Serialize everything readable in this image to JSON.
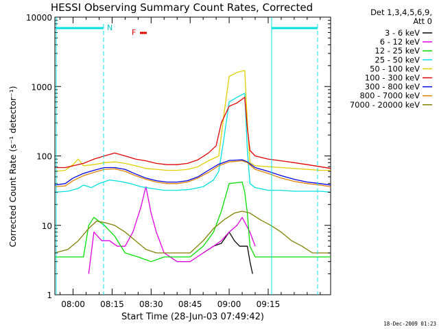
{
  "chart_data": {
    "type": "line",
    "title": "HESSI Observing Summary Count Rates, Corrected",
    "xlabel": "Start Time (28-Jun-03 07:49:42)",
    "ylabel": "Corrected Count Rate (s⁻¹ detector⁻¹)",
    "y_scale": "log",
    "ylim": [
      1,
      10000
    ],
    "xlim_minutes": [
      -7,
      99
    ],
    "x_ticks": [
      {
        "minute": 0,
        "label": "08:00"
      },
      {
        "minute": 15,
        "label": "08:15"
      },
      {
        "minute": 30,
        "label": "08:30"
      },
      {
        "minute": 45,
        "label": "08:45"
      },
      {
        "minute": 60,
        "label": "09:00"
      },
      {
        "minute": 75,
        "label": "09:15"
      }
    ],
    "y_ticks": [
      {
        "value": 1,
        "label": "1"
      },
      {
        "value": 10,
        "label": "10"
      },
      {
        "value": 100,
        "label": "100"
      },
      {
        "value": 1000,
        "label": "1000"
      },
      {
        "value": 10000,
        "label": "10000"
      }
    ],
    "legend_header": [
      "Det 1,3,4,5,6,9,",
      "Att 0"
    ],
    "legend_position": "right",
    "annotations": {
      "night": "N",
      "flare": "F"
    },
    "timestamp": "18-Dec-2009 01:23",
    "series": [
      {
        "name": "3 - 6 keV",
        "color": "#000000",
        "points": [
          [
            50,
            4
          ],
          [
            54,
            5
          ],
          [
            57,
            5.5
          ],
          [
            60,
            8
          ],
          [
            62,
            6
          ],
          [
            64,
            5
          ],
          [
            67,
            5
          ],
          [
            68,
            3
          ],
          [
            69,
            2
          ]
        ]
      },
      {
        "name": "6 - 12 keV",
        "color": "#e000e0",
        "points": [
          [
            6,
            2
          ],
          [
            8,
            8
          ],
          [
            11,
            6
          ],
          [
            14,
            6
          ],
          [
            17,
            5
          ],
          [
            20,
            5
          ],
          [
            23,
            8
          ],
          [
            26,
            18
          ],
          [
            28,
            36
          ],
          [
            30,
            15
          ],
          [
            32,
            8
          ],
          [
            35,
            4
          ],
          [
            40,
            3
          ],
          [
            45,
            3
          ],
          [
            50,
            4
          ],
          [
            54,
            5
          ],
          [
            57,
            6
          ],
          [
            60,
            8
          ],
          [
            63,
            10
          ],
          [
            65,
            13
          ],
          [
            68,
            8
          ],
          [
            70,
            5
          ]
        ]
      },
      {
        "name": "12 - 25 keV",
        "color": "#00e000",
        "points": [
          [
            -7,
            3.5
          ],
          [
            0,
            3.5
          ],
          [
            4,
            3.5
          ],
          [
            6,
            10
          ],
          [
            8,
            13
          ],
          [
            12,
            10
          ],
          [
            16,
            7
          ],
          [
            20,
            4
          ],
          [
            25,
            3.5
          ],
          [
            30,
            3
          ],
          [
            35,
            3.5
          ],
          [
            40,
            3.5
          ],
          [
            45,
            3.5
          ],
          [
            50,
            5
          ],
          [
            54,
            8
          ],
          [
            57,
            16
          ],
          [
            60,
            40
          ],
          [
            65,
            42
          ],
          [
            66,
            30
          ],
          [
            67,
            15
          ],
          [
            68,
            5
          ],
          [
            70,
            3.5
          ],
          [
            80,
            3.5
          ],
          [
            90,
            3.5
          ],
          [
            95,
            3.5
          ],
          [
            99,
            3.5
          ]
        ]
      },
      {
        "name": "25 - 50 keV",
        "color": "#00e0e0",
        "points": [
          [
            -7,
            30
          ],
          [
            -2,
            31
          ],
          [
            2,
            34
          ],
          [
            4,
            38
          ],
          [
            7,
            35
          ],
          [
            10,
            40
          ],
          [
            14,
            45
          ],
          [
            18,
            43
          ],
          [
            22,
            40
          ],
          [
            26,
            36
          ],
          [
            30,
            34
          ],
          [
            35,
            32
          ],
          [
            40,
            32
          ],
          [
            45,
            33
          ],
          [
            50,
            36
          ],
          [
            54,
            45
          ],
          [
            56,
            60
          ],
          [
            58,
            180
          ],
          [
            60,
            600
          ],
          [
            63,
            700
          ],
          [
            66,
            800
          ],
          [
            67,
            120
          ],
          [
            68,
            40
          ],
          [
            70,
            35
          ],
          [
            75,
            32
          ],
          [
            80,
            32
          ],
          [
            85,
            31
          ],
          [
            90,
            31
          ],
          [
            95,
            31
          ],
          [
            99,
            30
          ]
        ]
      },
      {
        "name": "50 - 100 keV",
        "color": "#e0d000",
        "points": [
          [
            -7,
            60
          ],
          [
            -3,
            62
          ],
          [
            0,
            75
          ],
          [
            2,
            90
          ],
          [
            4,
            72
          ],
          [
            8,
            75
          ],
          [
            12,
            80
          ],
          [
            16,
            82
          ],
          [
            20,
            78
          ],
          [
            24,
            72
          ],
          [
            28,
            66
          ],
          [
            32,
            64
          ],
          [
            36,
            62
          ],
          [
            40,
            62
          ],
          [
            44,
            64
          ],
          [
            48,
            70
          ],
          [
            52,
            85
          ],
          [
            56,
            100
          ],
          [
            58,
            400
          ],
          [
            60,
            1400
          ],
          [
            63,
            1600
          ],
          [
            66,
            1700
          ],
          [
            67,
            300
          ],
          [
            68,
            80
          ],
          [
            70,
            72
          ],
          [
            75,
            70
          ],
          [
            80,
            68
          ],
          [
            85,
            66
          ],
          [
            90,
            64
          ],
          [
            95,
            62
          ],
          [
            99,
            62
          ]
        ]
      },
      {
        "name": "100 - 300 keV",
        "color": "#e00000",
        "points": [
          [
            -7,
            68
          ],
          [
            -3,
            68
          ],
          [
            0,
            72
          ],
          [
            4,
            78
          ],
          [
            8,
            90
          ],
          [
            12,
            100
          ],
          [
            16,
            110
          ],
          [
            20,
            100
          ],
          [
            24,
            90
          ],
          [
            28,
            85
          ],
          [
            32,
            78
          ],
          [
            36,
            75
          ],
          [
            40,
            75
          ],
          [
            44,
            78
          ],
          [
            48,
            88
          ],
          [
            52,
            110
          ],
          [
            55,
            140
          ],
          [
            57,
            300
          ],
          [
            60,
            520
          ],
          [
            63,
            580
          ],
          [
            66,
            700
          ],
          [
            67,
            250
          ],
          [
            68,
            120
          ],
          [
            70,
            100
          ],
          [
            75,
            90
          ],
          [
            80,
            85
          ],
          [
            85,
            80
          ],
          [
            90,
            75
          ],
          [
            95,
            70
          ],
          [
            99,
            66
          ]
        ]
      },
      {
        "name": "300 - 800 keV",
        "color": "#0000e0",
        "points": [
          [
            -7,
            38
          ],
          [
            -3,
            40
          ],
          [
            0,
            48
          ],
          [
            4,
            56
          ],
          [
            8,
            62
          ],
          [
            12,
            68
          ],
          [
            16,
            68
          ],
          [
            20,
            64
          ],
          [
            24,
            55
          ],
          [
            28,
            48
          ],
          [
            32,
            44
          ],
          [
            36,
            42
          ],
          [
            40,
            42
          ],
          [
            44,
            44
          ],
          [
            48,
            50
          ],
          [
            52,
            62
          ],
          [
            56,
            76
          ],
          [
            60,
            86
          ],
          [
            65,
            88
          ],
          [
            67,
            82
          ],
          [
            70,
            68
          ],
          [
            75,
            60
          ],
          [
            80,
            52
          ],
          [
            85,
            46
          ],
          [
            90,
            42
          ],
          [
            95,
            40
          ],
          [
            99,
            38
          ]
        ]
      },
      {
        "name": "800 - 7000 keV",
        "color": "#e08000",
        "points": [
          [
            -7,
            36
          ],
          [
            -3,
            37
          ],
          [
            0,
            44
          ],
          [
            4,
            52
          ],
          [
            8,
            58
          ],
          [
            12,
            64
          ],
          [
            16,
            65
          ],
          [
            20,
            60
          ],
          [
            24,
            52
          ],
          [
            28,
            46
          ],
          [
            32,
            42
          ],
          [
            36,
            40
          ],
          [
            40,
            40
          ],
          [
            44,
            42
          ],
          [
            48,
            48
          ],
          [
            52,
            58
          ],
          [
            56,
            72
          ],
          [
            60,
            82
          ],
          [
            65,
            85
          ],
          [
            67,
            80
          ],
          [
            70,
            64
          ],
          [
            75,
            56
          ],
          [
            80,
            48
          ],
          [
            85,
            43
          ],
          [
            90,
            40
          ],
          [
            95,
            38
          ],
          [
            99,
            36
          ]
        ]
      },
      {
        "name": "7000 - 20000 keV",
        "color": "#808000",
        "points": [
          [
            -7,
            4
          ],
          [
            -2,
            4.5
          ],
          [
            2,
            6
          ],
          [
            6,
            9
          ],
          [
            9,
            11.5
          ],
          [
            12,
            11
          ],
          [
            16,
            10
          ],
          [
            20,
            8
          ],
          [
            24,
            6
          ],
          [
            28,
            4.5
          ],
          [
            32,
            4
          ],
          [
            40,
            4
          ],
          [
            45,
            4
          ],
          [
            50,
            6
          ],
          [
            54,
            9
          ],
          [
            58,
            12
          ],
          [
            62,
            15
          ],
          [
            65,
            16
          ],
          [
            68,
            15
          ],
          [
            72,
            12
          ],
          [
            76,
            10
          ],
          [
            80,
            8
          ],
          [
            84,
            6
          ],
          [
            88,
            5
          ],
          [
            92,
            4
          ],
          [
            96,
            4
          ],
          [
            99,
            4
          ]
        ]
      }
    ]
  }
}
